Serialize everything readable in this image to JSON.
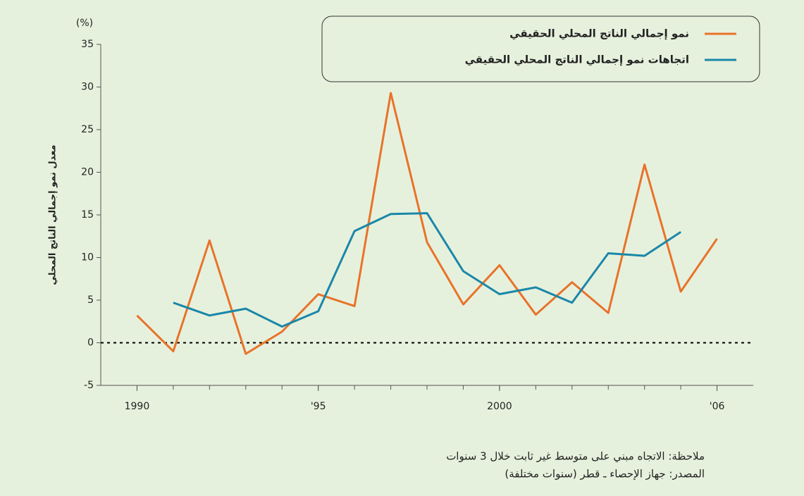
{
  "chart_data": {
    "type": "line",
    "y_unit": "(%)",
    "y_label": "معدل نمو إجمالي الناتج المحلي",
    "x": [
      1990,
      1991,
      1992,
      1993,
      1994,
      1995,
      1996,
      1997,
      1998,
      1999,
      2000,
      2001,
      2002,
      2003,
      2004,
      2005,
      2006
    ],
    "series": [
      {
        "name": "نمو إجمالي الناتج المحلي الحقيقي",
        "color": "#e8732a",
        "values": [
          3.2,
          -1,
          12,
          -1.3,
          1.3,
          5.7,
          4.3,
          29.3,
          11.8,
          4.5,
          9.1,
          3.3,
          7.1,
          3.5,
          20.9,
          6.0,
          12.2
        ]
      },
      {
        "name": "اتجاهات نمو إجمالي الناتج المحلي الحقيقي",
        "color": "#1a87a8",
        "values": [
          null,
          4.7,
          3.2,
          4.0,
          1.9,
          3.7,
          13.1,
          15.1,
          15.2,
          8.4,
          5.7,
          6.5,
          4.7,
          10.5,
          10.2,
          13.0,
          null
        ]
      }
    ],
    "xlim": [
      1989,
      2007
    ],
    "xticks": [
      1990,
      {
        "value": 1995,
        "label": "'95"
      },
      2000,
      {
        "value": 2006,
        "label": "'06"
      }
    ],
    "ylim": [
      -5,
      35
    ],
    "yticks": [
      -5,
      0,
      5,
      10,
      15,
      20,
      25,
      30,
      35
    ],
    "notes": [
      "ملاحظة: الاتجاه مبني على متوسط غير ثابت خلال 3 سنوات",
      "المصدر: جهاز الإحصاء ـ قطر (سنوات مختلفة)"
    ]
  }
}
